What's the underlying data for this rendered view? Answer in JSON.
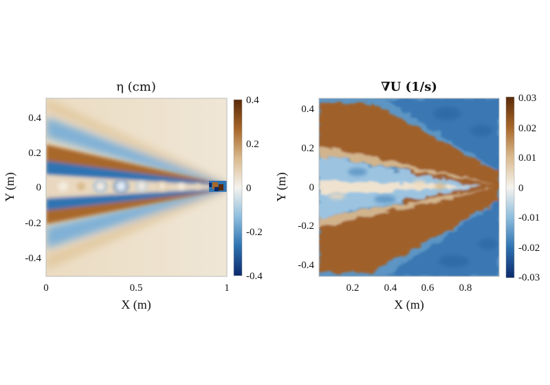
{
  "chart_data": [
    {
      "type": "heatmap",
      "title": "η (cm)",
      "xlabel": "X (m)",
      "ylabel": "Y (m)",
      "xlim": [
        0,
        1
      ],
      "ylim": [
        -0.5,
        0.5
      ],
      "x_ticks": [
        0,
        0.5,
        1
      ],
      "x_tick_labels": [
        "0",
        "0.5",
        "1"
      ],
      "y_ticks": [
        0.4,
        0.2,
        0,
        -0.2,
        -0.4
      ],
      "y_tick_labels": [
        "0.4",
        "0.2",
        "0",
        "-0.2",
        "-0.4"
      ],
      "colorbar": {
        "range": [
          -0.4,
          0.4
        ],
        "ticks": [
          0.4,
          0.2,
          0,
          -0.2,
          -0.4
        ],
        "tick_labels": [
          "0.4",
          "0.2",
          "0",
          "-0.2",
          "-0.4"
        ],
        "colormap": [
          "#0d2a6b",
          "#2e73b2",
          "#8bbcdc",
          "#f5f3ee",
          "#d9b98c",
          "#a8682a",
          "#5a2a08"
        ]
      },
      "pattern": "Kelvin-style V-shaped wake pattern with vertex near X = 1, Y = 0; alternating positive (brown) and negative (blue) arms opening toward X = 0"
    },
    {
      "type": "heatmap",
      "title": "∇U (1/s)",
      "xlabel": "X (m)",
      "ylabel": "Y (m)",
      "xlim": [
        0.02,
        0.98
      ],
      "ylim": [
        -0.46,
        0.46
      ],
      "x_ticks": [
        0.2,
        0.4,
        0.6,
        0.8
      ],
      "x_tick_labels": [
        "0.2",
        "0.4",
        "0.6",
        "0.8"
      ],
      "y_ticks": [
        0.4,
        0.2,
        0,
        -0.2,
        -0.4
      ],
      "y_tick_labels": [
        "0.4",
        "0.2",
        "0",
        "-0.2",
        "-0.4"
      ],
      "colorbar": {
        "range": [
          -0.03,
          0.03
        ],
        "ticks": [
          0.03,
          0.02,
          0.01,
          0,
          -0.01,
          -0.02,
          -0.03
        ],
        "tick_labels": [
          "0.03",
          "0.02",
          "0.01",
          "0",
          "-0.01",
          "-0.02",
          "-0.03"
        ],
        "colormap": [
          "#0d2a6b",
          "#2e73b2",
          "#8bbcdc",
          "#f5f3ee",
          "#d9b98c",
          "#a8682a",
          "#5a2a08"
        ]
      },
      "pattern": "V-shaped divergence pattern with vertex near X = 0.95, Y = 0; positive (brown) arms, negative (blue) interior and exterior"
    }
  ]
}
